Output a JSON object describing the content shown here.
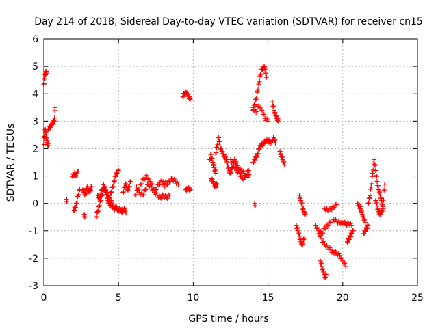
{
  "chart_data": {
    "type": "scatter",
    "title": "Day 214 of 2018, Sidereal Day-to-day VTEC variation (SDTVAR) for receiver cn15",
    "xlabel": "GPS time / hours",
    "ylabel": "SDTVAR / TECUs",
    "xlim": [
      0,
      25
    ],
    "ylim": [
      -3,
      6
    ],
    "xticks": [
      "0",
      "5",
      "10",
      "15",
      "20",
      "25"
    ],
    "yticks": [
      "-3",
      "-2",
      "-1",
      "0",
      "1",
      "2",
      "3",
      "4",
      "5",
      "6"
    ],
    "grid": true,
    "marker": "+",
    "colors": {
      "marker": "#ff0000",
      "grid": "#b0b0b0",
      "axis": "#000000"
    },
    "segments": [
      {
        "x": [
          0.0,
          0.05,
          0.1,
          0.15,
          0.2
        ],
        "y": [
          4.35,
          4.55,
          4.7,
          4.8,
          4.75
        ]
      },
      {
        "x": [
          0.0,
          0.05,
          0.1,
          0.15,
          0.2,
          0.25,
          0.3
        ],
        "y": [
          2.1,
          2.4,
          2.7,
          2.5,
          2.3,
          2.2,
          2.1
        ]
      },
      {
        "x": [
          0.3,
          0.4,
          0.5,
          0.6,
          0.7,
          0.75
        ],
        "y": [
          2.7,
          2.8,
          2.85,
          2.9,
          3.0,
          3.5
        ]
      },
      {
        "x": [
          1.5,
          1.55
        ],
        "y": [
          0.15,
          0.05
        ]
      },
      {
        "x": [
          1.9,
          2.0,
          2.1,
          2.2,
          2.3
        ],
        "y": [
          1.0,
          1.05,
          1.1,
          1.0,
          1.15
        ]
      },
      {
        "x": [
          2.0,
          2.1,
          2.2,
          2.3,
          2.4
        ],
        "y": [
          -0.25,
          -0.15,
          0.0,
          0.3,
          0.5
        ]
      },
      {
        "x": [
          2.6,
          2.7,
          2.8,
          2.9,
          3.0,
          3.1,
          3.2
        ],
        "y": [
          0.5,
          0.4,
          0.3,
          0.6,
          0.45,
          0.5,
          0.6
        ]
      },
      {
        "x": [
          2.7,
          2.75
        ],
        "y": [
          -0.4,
          -0.5
        ]
      },
      {
        "x": [
          3.5,
          3.6,
          3.7,
          3.8,
          3.9,
          4.0,
          4.1,
          4.2,
          4.3,
          4.4,
          4.5,
          4.6,
          4.7,
          4.8,
          4.9,
          5.0
        ],
        "y": [
          -0.5,
          -0.3,
          -0.1,
          0.1,
          0.3,
          0.5,
          0.6,
          0.4,
          0.3,
          0.2,
          0.4,
          0.6,
          0.8,
          1.0,
          1.1,
          1.2
        ]
      },
      {
        "x": [
          3.6,
          3.7,
          3.8,
          3.9,
          4.0,
          4.1,
          4.2,
          4.3,
          4.4,
          4.5
        ],
        "y": [
          0.3,
          0.2,
          0.3,
          0.5,
          0.7,
          0.5,
          0.3,
          0.1,
          0.0,
          -0.1
        ]
      },
      {
        "x": [
          4.5,
          4.6,
          4.7,
          4.8,
          4.9,
          5.0,
          5.1,
          5.2,
          5.3,
          5.4,
          5.5
        ],
        "y": [
          0.1,
          -0.1,
          -0.2,
          -0.15,
          -0.2,
          -0.25,
          -0.2,
          -0.3,
          -0.25,
          -0.2,
          -0.35
        ]
      },
      {
        "x": [
          5.3,
          5.4,
          5.5,
          5.6,
          5.7,
          5.8
        ],
        "y": [
          0.4,
          0.6,
          0.7,
          0.5,
          0.6,
          0.8
        ]
      },
      {
        "x": [
          6.1,
          6.3,
          6.5,
          6.7,
          6.9,
          7.1,
          7.3,
          7.5,
          7.7,
          7.9,
          8.1
        ],
        "y": [
          0.3,
          0.5,
          0.7,
          0.9,
          1.0,
          0.8,
          0.6,
          0.5,
          0.7,
          0.8,
          0.6
        ]
      },
      {
        "x": [
          6.2,
          6.4,
          6.6,
          6.8,
          7.0,
          7.2,
          7.4,
          7.6,
          7.8,
          8.0,
          8.2,
          8.4
        ],
        "y": [
          0.6,
          0.4,
          0.3,
          0.5,
          0.7,
          0.6,
          0.4,
          0.3,
          0.2,
          0.3,
          0.2,
          0.3
        ]
      },
      {
        "x": [
          8.0,
          8.2,
          8.4,
          8.6,
          8.8,
          9.0
        ],
        "y": [
          0.8,
          0.7,
          0.8,
          0.9,
          0.8,
          0.7
        ]
      },
      {
        "x": [
          9.3,
          9.4,
          9.5,
          9.6,
          9.7,
          9.8
        ],
        "y": [
          3.9,
          4.0,
          4.05,
          4.0,
          3.9,
          3.8
        ]
      },
      {
        "x": [
          9.5,
          9.6,
          9.7,
          9.8
        ],
        "y": [
          0.5,
          0.5,
          0.55,
          0.5
        ]
      },
      {
        "x": [
          11.1,
          11.2,
          11.3,
          11.4,
          11.5
        ],
        "y": [
          1.6,
          1.8,
          1.5,
          1.3,
          1.1
        ]
      },
      {
        "x": [
          11.2,
          11.3,
          11.4,
          11.5,
          11.6
        ],
        "y": [
          0.9,
          0.8,
          0.7,
          0.6,
          0.7
        ]
      },
      {
        "x": [
          11.5,
          11.6,
          11.7,
          11.8,
          11.9,
          12.0,
          12.1,
          12.2,
          12.3,
          12.4,
          12.5,
          12.6,
          12.7,
          12.8,
          12.9,
          13.0,
          13.2,
          13.4,
          13.6,
          13.8
        ],
        "y": [
          1.8,
          2.1,
          2.4,
          2.1,
          1.9,
          1.8,
          1.7,
          1.6,
          1.4,
          1.2,
          1.1,
          1.3,
          1.5,
          1.6,
          1.4,
          1.3,
          1.2,
          1.1,
          1.0,
          1.0
        ]
      },
      {
        "x": [
          12.5,
          12.7,
          12.9,
          13.1,
          13.3,
          13.5,
          13.7
        ],
        "y": [
          1.6,
          1.4,
          1.2,
          1.1,
          0.9,
          1.0,
          1.2
        ]
      },
      {
        "x": [
          14.0,
          14.1,
          14.2,
          14.3,
          14.4,
          14.5,
          14.6,
          14.7,
          14.8,
          14.9,
          15.0,
          15.1,
          15.2
        ],
        "y": [
          1.5,
          1.6,
          1.7,
          1.8,
          2.0,
          2.1,
          2.15,
          2.2,
          2.25,
          2.3,
          2.3,
          2.25,
          2.2
        ]
      },
      {
        "x": [
          14.0,
          14.1,
          14.2,
          14.3,
          14.4,
          14.5,
          14.6,
          14.7,
          14.8,
          14.9
        ],
        "y": [
          3.4,
          3.6,
          3.8,
          4.1,
          4.4,
          4.7,
          4.9,
          5.0,
          4.9,
          4.6
        ]
      },
      {
        "x": [
          14.0,
          14.2,
          14.4,
          14.6,
          14.8,
          15.0
        ],
        "y": [
          3.5,
          3.3,
          3.6,
          3.4,
          3.1,
          3.0
        ]
      },
      {
        "x": [
          14.1,
          14.15
        ],
        "y": [
          0.0,
          -0.1
        ]
      },
      {
        "x": [
          15.3,
          15.4,
          15.5,
          15.6,
          15.7
        ],
        "y": [
          3.7,
          3.4,
          3.2,
          3.1,
          3.0
        ]
      },
      {
        "x": [
          15.3,
          15.4,
          15.5
        ],
        "y": [
          2.3,
          2.4,
          2.2
        ]
      },
      {
        "x": [
          15.8,
          15.9,
          16.0,
          16.1
        ],
        "y": [
          1.9,
          1.7,
          1.6,
          1.4
        ]
      },
      {
        "x": [
          16.9,
          17.0,
          17.1,
          17.2,
          17.3,
          17.4
        ],
        "y": [
          -0.8,
          -1.0,
          -1.2,
          -1.4,
          -1.5,
          -1.3
        ]
      },
      {
        "x": [
          17.1,
          17.2,
          17.3,
          17.4,
          17.5
        ],
        "y": [
          0.3,
          0.1,
          -0.1,
          -0.3,
          -0.4
        ]
      },
      {
        "x": [
          18.2,
          18.4,
          18.6,
          18.8,
          19.0,
          19.2
        ],
        "y": [
          -0.8,
          -1.0,
          -1.1,
          -0.9,
          -0.8,
          -0.7
        ]
      },
      {
        "x": [
          18.4,
          18.6,
          18.8,
          19.0,
          19.2,
          19.4,
          19.6,
          19.8,
          20.0,
          20.2
        ],
        "y": [
          -1.1,
          -1.3,
          -1.5,
          -1.6,
          -1.7,
          -1.8,
          -1.8,
          -1.9,
          -2.1,
          -2.3
        ]
      },
      {
        "x": [
          18.5,
          18.6,
          18.7,
          18.8,
          18.9
        ],
        "y": [
          -2.1,
          -2.3,
          -2.5,
          -2.7,
          -2.6
        ]
      },
      {
        "x": [
          18.8,
          19.0,
          19.2,
          19.4,
          19.6
        ],
        "y": [
          -0.2,
          -0.25,
          -0.2,
          -0.15,
          -0.05
        ]
      },
      {
        "x": [
          19.4,
          19.6,
          19.8,
          20.0,
          20.2,
          20.4,
          20.6
        ],
        "y": [
          -0.6,
          -0.65,
          -0.7,
          -0.7,
          -0.75,
          -0.75,
          -0.8
        ]
      },
      {
        "x": [
          20.3,
          20.4,
          20.5,
          20.6,
          20.7
        ],
        "y": [
          -1.4,
          -1.3,
          -1.2,
          -1.1,
          -1.0
        ]
      },
      {
        "x": [
          21.0,
          21.1,
          21.2,
          21.3,
          21.4,
          21.5
        ],
        "y": [
          0.0,
          -0.1,
          -0.2,
          -0.4,
          -0.5,
          -0.7
        ]
      },
      {
        "x": [
          21.4,
          21.5,
          21.6,
          21.7
        ],
        "y": [
          -1.1,
          -1.0,
          -0.9,
          -0.8
        ]
      },
      {
        "x": [
          21.7,
          21.8,
          21.9,
          22.0,
          22.1,
          22.2,
          22.3,
          22.4,
          22.5,
          22.6,
          22.7
        ],
        "y": [
          0.0,
          0.2,
          0.6,
          1.1,
          1.6,
          1.2,
          0.8,
          0.5,
          0.3,
          0.1,
          -0.2
        ]
      },
      {
        "x": [
          22.2,
          22.3,
          22.4,
          22.5,
          22.6,
          22.7,
          22.8
        ],
        "y": [
          0.1,
          -0.1,
          -0.3,
          -0.4,
          -0.3,
          -0.1,
          0.7
        ]
      }
    ]
  }
}
